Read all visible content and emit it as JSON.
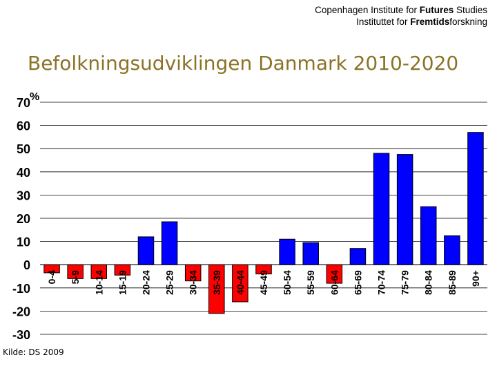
{
  "header": {
    "line1_prefix": "Copenhagen Institute for ",
    "line1_bold": "Futures",
    "line1_suffix": " Studies",
    "line2_prefix": "Instituttet for ",
    "line2_bold": "Fremtids",
    "line2_suffix": "forskning"
  },
  "title": "Befolkningsudviklingen Danmark 2010-2020",
  "source": "Kilde: DS 2009",
  "colors": {
    "positive": "#0000ff",
    "negative": "#ff0000",
    "title": "#8a7326"
  },
  "chart_data": {
    "type": "bar",
    "ylabel": "%",
    "ylim": [
      -30,
      70
    ],
    "yticks": [
      70,
      60,
      50,
      40,
      30,
      20,
      10,
      0,
      -10,
      -20,
      -30
    ],
    "grid": true,
    "categories": [
      "0-4",
      "5-9",
      "10-14",
      "15-19",
      "20-24",
      "25-29",
      "30-34",
      "35-39",
      "40-44",
      "45-49",
      "50-54",
      "55-59",
      "60-64",
      "65-69",
      "70-74",
      "75-79",
      "80-84",
      "85-89",
      "90+"
    ],
    "values": [
      -3.5,
      -6,
      -6,
      -4.5,
      12,
      18.5,
      -7,
      -21,
      -16,
      -4,
      11,
      9.5,
      -8,
      7,
      48,
      47.5,
      25,
      12.5,
      57
    ]
  }
}
